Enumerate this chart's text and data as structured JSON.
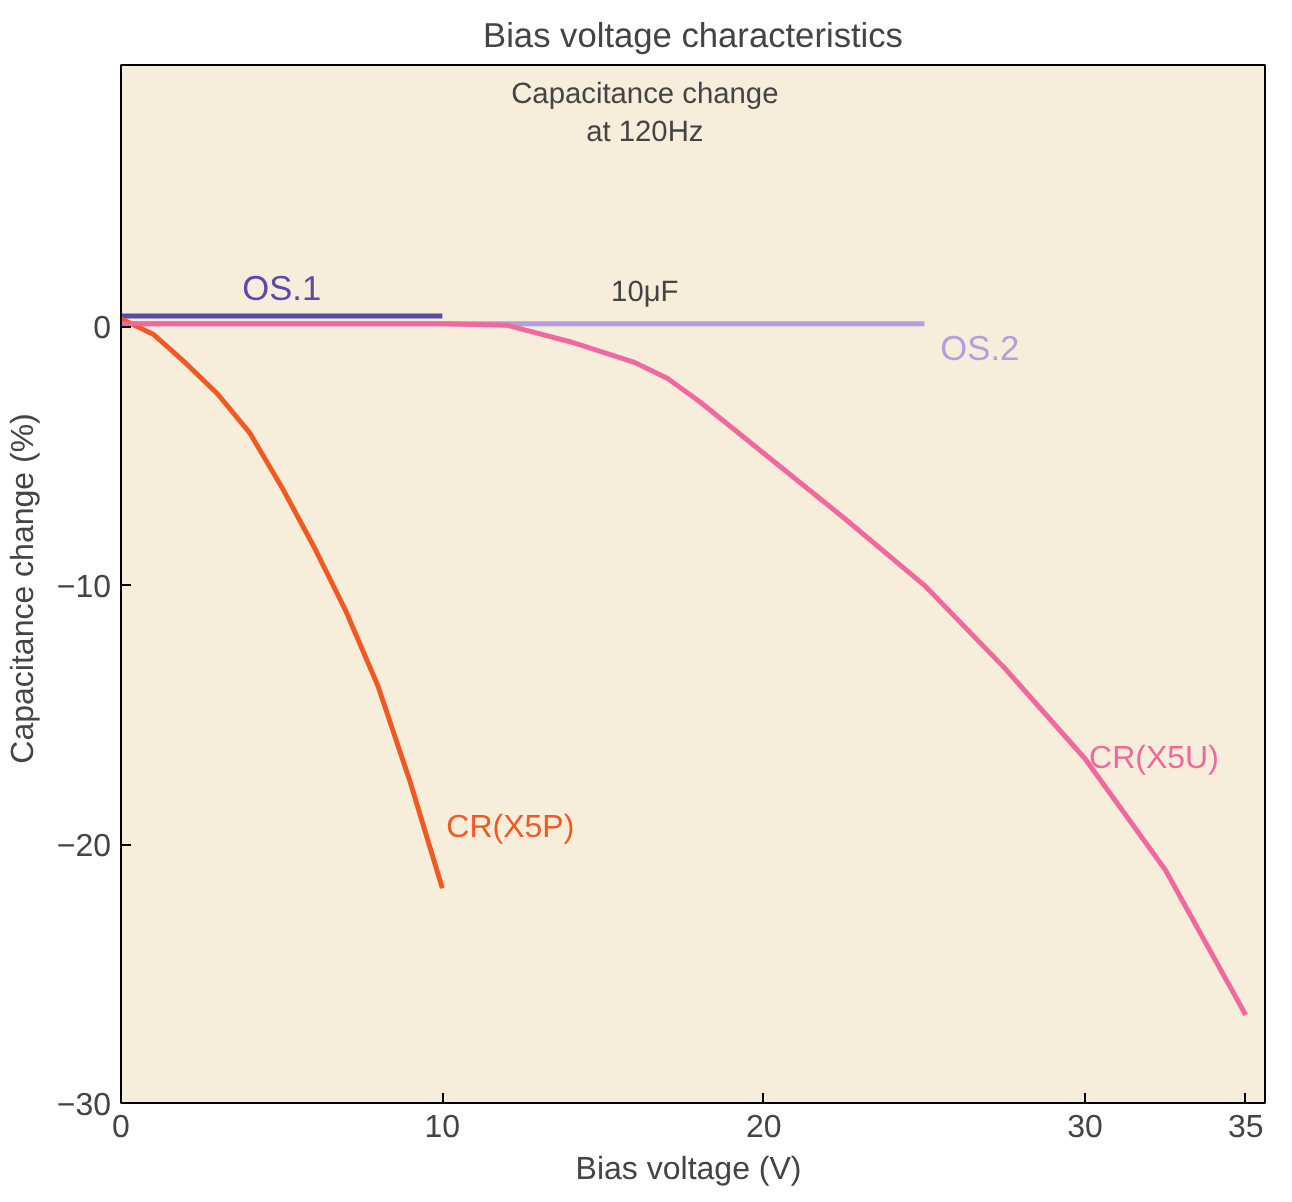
{
  "chart_data": {
    "type": "line",
    "title": "Bias voltage characteristics",
    "xlabel": "Bias voltage  (V)",
    "ylabel": "Capacitance change  (%)",
    "annotations": [
      "Capacitance change\nat 120Hz",
      "10μF"
    ],
    "xlim": [
      0,
      35.6
    ],
    "ylim": [
      -30,
      10.1
    ],
    "xticks": [
      0,
      10,
      20,
      30,
      35
    ],
    "yticks": [
      0,
      {
        "value": -10,
        "label": "−10"
      },
      {
        "value": -20,
        "label": "−20"
      },
      {
        "value": -30,
        "label": "−30"
      }
    ],
    "grid": false,
    "series": [
      {
        "name": "OS.1",
        "color": "#5b4aa8",
        "x": [
          0,
          10
        ],
        "values": [
          0.4,
          0.4
        ]
      },
      {
        "name": "OS.2",
        "color": "#b49fdc",
        "x": [
          0,
          25
        ],
        "values": [
          0.1,
          0.1
        ]
      },
      {
        "name": "CR(X5P)",
        "color": "#f05a22",
        "x": [
          0,
          1,
          2,
          3,
          4,
          5,
          6,
          7,
          8,
          9,
          10
        ],
        "values": [
          0.3,
          -0.3,
          -1.4,
          -2.6,
          -4.1,
          -6.2,
          -8.5,
          -11,
          -13.9,
          -17.6,
          -21.7
        ]
      },
      {
        "name": "CR(X5U)",
        "color": "#f0689e",
        "x": [
          0,
          10,
          12,
          14,
          16,
          17,
          18,
          20,
          22.5,
          25,
          27.5,
          30,
          32.5,
          35
        ],
        "values": [
          0.1,
          0.1,
          0.05,
          -0.6,
          -1.4,
          -2,
          -2.9,
          -4.9,
          -7.4,
          -10,
          -13.2,
          -16.7,
          -21,
          -26.6
        ]
      }
    ]
  }
}
